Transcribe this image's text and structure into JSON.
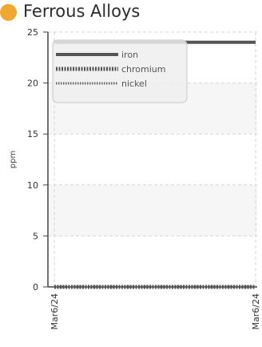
{
  "header": {
    "title": "Ferrous Alloys",
    "dot_color": "#f0a830"
  },
  "chart_data": {
    "type": "line",
    "title": "Ferrous Alloys",
    "xlabel": "",
    "ylabel": "ppm",
    "x": [
      "Mar6/24",
      "Mar6/24"
    ],
    "ylim": [
      0,
      25
    ],
    "yticks": [
      0,
      5,
      10,
      15,
      20,
      25
    ],
    "grid": true,
    "legend_position": "top-left",
    "series": [
      {
        "name": "iron",
        "values": [
          24,
          24
        ],
        "color": "#555555",
        "style": "solid"
      },
      {
        "name": "chromium",
        "values": [
          0,
          0
        ],
        "color": "#555555",
        "style": "dotted-thick"
      },
      {
        "name": "nickel",
        "values": [
          0,
          0
        ],
        "color": "#666666",
        "style": "dotted-thin"
      }
    ]
  }
}
